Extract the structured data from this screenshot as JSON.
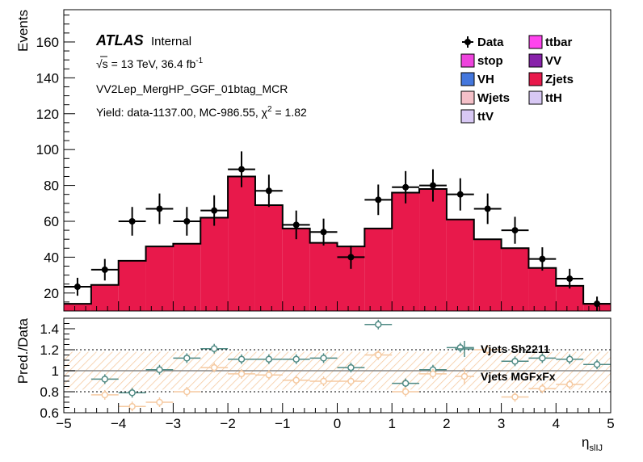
{
  "chart_data": [
    {
      "type": "histogram",
      "ylabel": "Events",
      "ylim": [
        10,
        178
      ],
      "yticks": [
        20,
        40,
        60,
        80,
        100,
        120,
        140,
        160
      ],
      "xlim": [
        -5,
        5
      ],
      "bin_edges": [
        -5,
        -4.5,
        -4,
        -3.5,
        -3,
        -2.5,
        -2,
        -1.5,
        -1,
        -0.5,
        0,
        0.5,
        1,
        1.5,
        2,
        2.5,
        3,
        3.5,
        4,
        4.5,
        5
      ],
      "series": [
        {
          "name": "Zjets",
          "color": "#e8194b",
          "values": [
            14,
            24.5,
            38,
            46,
            47.5,
            62,
            85,
            69,
            56,
            48,
            46,
            56,
            76,
            78,
            61,
            50,
            45,
            34,
            24,
            14
          ]
        }
      ],
      "data_points": {
        "name": "Data",
        "values": [
          23.5,
          33,
          60,
          67,
          60,
          66,
          89,
          77,
          58,
          54,
          40,
          72,
          79,
          80,
          75,
          67,
          55,
          39,
          28,
          14
        ],
        "errors": [
          5,
          6,
          8,
          8.5,
          8,
          8.5,
          10,
          9,
          8,
          7.5,
          6.5,
          8.5,
          9,
          9,
          9,
          8.5,
          7.5,
          6.5,
          5.5,
          4
        ]
      },
      "legend": [
        {
          "label": "Data",
          "kind": "marker",
          "color": "#000000"
        },
        {
          "label": "ttbar",
          "kind": "box",
          "color": "#ff44ee"
        },
        {
          "label": "stop",
          "kind": "box",
          "color": "#ee44dd"
        },
        {
          "label": "VV",
          "kind": "box",
          "color": "#8822aa"
        },
        {
          "label": "VH",
          "kind": "box",
          "color": "#4477dd"
        },
        {
          "label": "Zjets",
          "kind": "box",
          "color": "#e8194b"
        },
        {
          "label": "Wjets",
          "kind": "box",
          "color": "#f4c0c8"
        },
        {
          "label": "ttH",
          "kind": "box",
          "color": "#d8c8f4"
        },
        {
          "label": "ttV",
          "kind": "box",
          "color": "#d8c8f4"
        }
      ],
      "annotations": {
        "atlas": "ATLAS",
        "internal": "Internal",
        "energy_sqrt": "√s",
        "energy_rest": " = 13 TeV, 36.4 fb",
        "energy_sup": "-1",
        "region": "VV2Lep_MergHP_GGF_01btag_MCR",
        "yield_main": "Yield: data-1137.00, MC-986.55, χ",
        "yield_sup": "2",
        "yield_end": " = 1.82"
      }
    },
    {
      "type": "ratio",
      "ylabel": "Pred./Data",
      "ylim": [
        0.6,
        1.5
      ],
      "yticks": [
        0.6,
        0.8,
        1,
        1.2,
        1.4
      ],
      "ytick_labels": [
        "0.6",
        "0.8",
        "1",
        "1.2",
        "1.4"
      ],
      "reference_lines": [
        1.2,
        1,
        0.8
      ],
      "xlabel_main": "η",
      "xlabel_sub": "slIJ",
      "xticks": [
        -5,
        -4,
        -3,
        -2,
        -1,
        0,
        1,
        2,
        3,
        4,
        5
      ],
      "xtick_labels": [
        "−5",
        "−4",
        "−3",
        "−2",
        "−1",
        "0",
        "1",
        "2",
        "3",
        "4",
        "5"
      ],
      "band_color": "#f5c9a0",
      "series": [
        {
          "name": "Vjets Sh2211",
          "color": "#4f8a84",
          "values": [
            null,
            0.92,
            0.79,
            1.01,
            1.12,
            1.21,
            1.11,
            1.11,
            1.11,
            1.12,
            1.03,
            1.44,
            0.88,
            1.01,
            1.22,
            null,
            1.09,
            1.12,
            1.11,
            1.06
          ]
        },
        {
          "name": "Vjets MGFxFx",
          "color": "#f5c9a0",
          "values": [
            null,
            0.77,
            0.66,
            0.7,
            0.8,
            1.03,
            0.97,
            0.96,
            0.91,
            0.9,
            0.9,
            1.15,
            0.8,
            0.97,
            null,
            1.2,
            0.75,
            0.83,
            0.87,
            null
          ]
        }
      ]
    }
  ]
}
